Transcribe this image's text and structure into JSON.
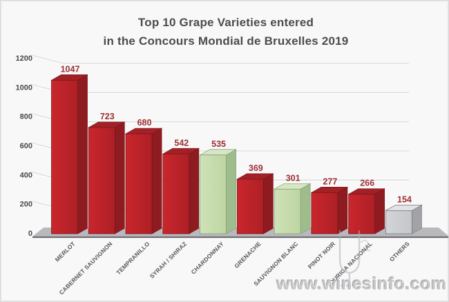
{
  "title": {
    "line1": "Top 10 Grape Varieties entered",
    "line2": "in the Concours Mondial de Bruxelles 2019"
  },
  "watermark": {
    "text": "www.winesinfo.com"
  },
  "chart_data": {
    "type": "bar",
    "title": "Top 10 Grape Varieties entered in the Concours Mondial de Bruxelles 2019",
    "categories": [
      "MERLOT",
      "CABERNET SAUVIGNON",
      "TEMPRANILLO",
      "SYRAH / SHIRAZ",
      "CHARDONNAY",
      "GRENACHE",
      "SAUVIGNON BLANC",
      "PINOT NOIR",
      "TOURIGA NACIONAL",
      "OTHERS"
    ],
    "values": [
      1047,
      723,
      680,
      542,
      535,
      369,
      301,
      277,
      266,
      154
    ],
    "bar_styles": [
      "red",
      "red",
      "red",
      "red",
      "green",
      "red",
      "green",
      "red",
      "red",
      "gray"
    ],
    "ylim": [
      0,
      1200
    ],
    "yticks": [
      0,
      200,
      400,
      600,
      800,
      1000,
      1200
    ],
    "grid": true,
    "effect": "3d",
    "value_label_color": "#9e2f33",
    "axis_label_color": "#58585b",
    "ytick_color": "#48484a",
    "gridline_color": "#dcdcdf",
    "styles": {
      "red": {
        "front": "#c9262c",
        "front2": "#ad2026",
        "side": "#8e1b20",
        "top": "#a32026",
        "edge": "#7c161a"
      },
      "green": {
        "front": "#cfe2b8",
        "front2": "#bdd5a2",
        "side": "#9fbc8d",
        "top": "#d7e6c4",
        "edge": "#7fa070"
      },
      "gray": {
        "front": "#d4d5d9",
        "front2": "#c5c6ca",
        "side": "#a2a3a7",
        "top": "#e2e3e7",
        "edge": "#797a7e"
      }
    },
    "floor": {
      "top": "#b9b9bd",
      "edge": "#6f6f73"
    }
  }
}
